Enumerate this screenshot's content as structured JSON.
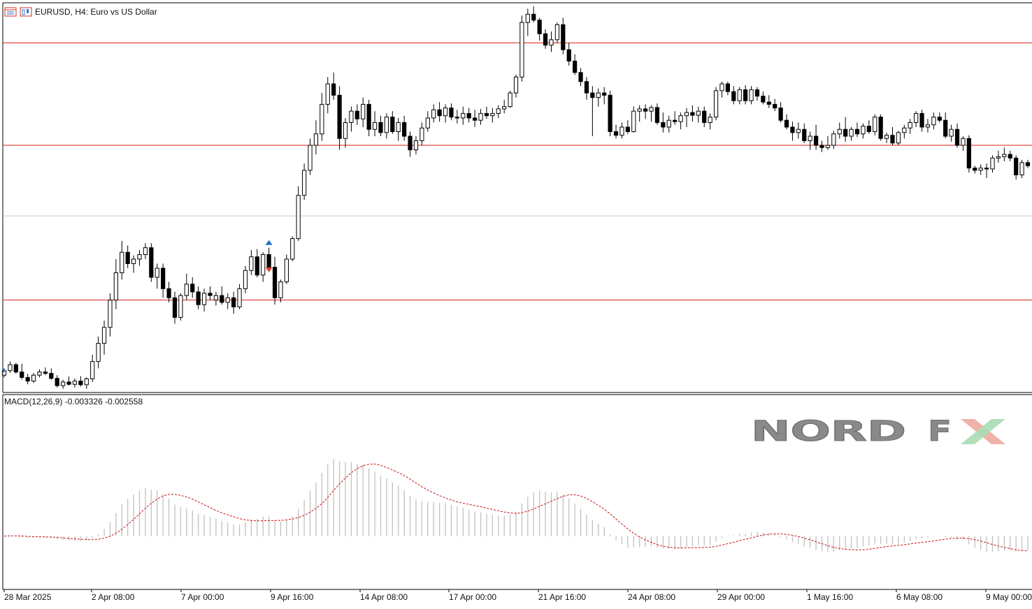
{
  "header": {
    "title": "EURUSD, H4:  Euro vs US Dollar",
    "icons": [
      "chart-window-icon",
      "chart-type-icon"
    ]
  },
  "indicator": {
    "label": "MACD(12,26,9) -0.003326 -0.002558"
  },
  "logo": {
    "text_main": "NORD",
    "text_f": "F",
    "text_x": "X",
    "colors": {
      "gray": "#8a8a8a",
      "red": "#f0b2a8",
      "green": "#a9dcb4"
    }
  },
  "colors": {
    "background": "#ffffff",
    "frame": "#000000",
    "level_line": "#e0201a",
    "mid_line": "#c8c8c8",
    "candle": "#000000",
    "macd_hist": "#c0c0c0",
    "signal": "#cc1111",
    "buy_arrow": "#1a73c6",
    "sell_arrow": "#e0402a"
  },
  "chart_data": [
    {
      "type": "candlestick",
      "symbol": "EURUSD",
      "timeframe": "H4",
      "x_labels": [
        "28 Mar 2025",
        "2 Apr 08:00",
        "7 Apr 00:00",
        "9 Apr 16:00",
        "14 Apr 08:00",
        "17 Apr 00:00",
        "21 Apr 16:00",
        "24 Apr 08:00",
        "29 Apr 00:00",
        "1 May 16:00",
        "6 May 08:00",
        "9 May 00:00"
      ],
      "ylim": [
        1.075,
        1.16
      ],
      "horizontal_lines": [
        1.1515,
        1.129,
        1.095
      ],
      "mid_line": 1.1135,
      "candles": [
        [
          1.0785,
          1.08,
          1.078,
          1.0795
        ],
        [
          1.0795,
          1.0815,
          1.079,
          1.0808
        ],
        [
          1.0808,
          1.0812,
          1.0788,
          1.0792
        ],
        [
          1.0792,
          1.081,
          1.0775,
          1.078
        ],
        [
          1.078,
          1.0788,
          1.0765,
          1.0772
        ],
        [
          1.0772,
          1.079,
          1.0768,
          1.0785
        ],
        [
          1.0785,
          1.0798,
          1.078,
          1.0792
        ],
        [
          1.0792,
          1.0802,
          1.0785,
          1.0789
        ],
        [
          1.0789,
          1.08,
          1.0775,
          1.0778
        ],
        [
          1.0778,
          1.0785,
          1.0758,
          1.0762
        ],
        [
          1.0762,
          1.0775,
          1.0755,
          1.077
        ],
        [
          1.077,
          1.0782,
          1.0762,
          1.0765
        ],
        [
          1.0765,
          1.0778,
          1.0758,
          1.0772
        ],
        [
          1.0772,
          1.0783,
          1.076,
          1.0764
        ],
        [
          1.0764,
          1.078,
          1.0755,
          1.0777
        ],
        [
          1.0777,
          1.083,
          1.077,
          1.0815
        ],
        [
          1.0815,
          1.087,
          1.08,
          1.0855
        ],
        [
          1.0855,
          1.0905,
          1.083,
          1.089
        ],
        [
          1.089,
          1.0965,
          1.087,
          1.095
        ],
        [
          1.095,
          1.104,
          1.093,
          1.101
        ],
        [
          1.101,
          1.108,
          1.0995,
          1.1055
        ],
        [
          1.1055,
          1.107,
          1.102,
          1.103
        ],
        [
          1.103,
          1.1048,
          1.101,
          1.104
        ],
        [
          1.104,
          1.106,
          1.1025,
          1.105
        ],
        [
          1.105,
          1.1075,
          1.104,
          1.1065
        ],
        [
          1.1065,
          1.1075,
          1.099,
          1.1
        ],
        [
          1.1,
          1.103,
          1.0975,
          1.102
        ],
        [
          1.102,
          1.103,
          1.0955,
          1.0975
        ],
        [
          1.0975,
          1.099,
          1.0945,
          1.0955
        ],
        [
          1.0955,
          1.0968,
          1.0898,
          1.0912
        ],
        [
          1.0912,
          1.0965,
          1.0905,
          1.096
        ],
        [
          1.096,
          1.1008,
          1.095,
          1.0985
        ],
        [
          1.0985,
          1.1,
          1.0955,
          1.0968
        ],
        [
          1.0968,
          1.098,
          1.093,
          1.094
        ],
        [
          1.094,
          1.0975,
          1.0925,
          1.0965
        ],
        [
          1.0965,
          1.098,
          1.095,
          1.096
        ],
        [
          1.095,
          1.0968,
          1.0938,
          1.096
        ],
        [
          1.096,
          1.098,
          1.094,
          1.0945
        ],
        [
          1.0945,
          1.0965,
          1.093,
          1.0955
        ],
        [
          1.0955,
          1.0968,
          1.092,
          1.0935
        ],
        [
          1.0935,
          1.0985,
          1.093,
          1.0975
        ],
        [
          1.0975,
          1.1025,
          1.0965,
          1.1015
        ],
        [
          1.1015,
          1.106,
          1.1005,
          1.1045
        ],
        [
          1.1045,
          1.1062,
          1.1,
          1.1005
        ],
        [
          1.1005,
          1.1055,
          1.099,
          1.105
        ],
        [
          1.105,
          1.1065,
          1.1015,
          1.1022
        ],
        [
          1.1022,
          1.1045,
          1.094,
          1.0955
        ],
        [
          1.0955,
          1.0995,
          1.0945,
          1.099
        ],
        [
          1.099,
          1.105,
          1.0985,
          1.104
        ],
        [
          1.104,
          1.109,
          1.1035,
          1.1085
        ],
        [
          1.1085,
          1.12,
          1.108,
          1.118
        ],
        [
          1.118,
          1.125,
          1.117,
          1.1235
        ],
        [
          1.1235,
          1.1305,
          1.1225,
          1.129
        ],
        [
          1.129,
          1.1345,
          1.127,
          1.1315
        ],
        [
          1.1315,
          1.1405,
          1.13,
          1.138
        ],
        [
          1.138,
          1.144,
          1.136,
          1.1425
        ],
        [
          1.1425,
          1.145,
          1.139,
          1.14
        ],
        [
          1.14,
          1.142,
          1.128,
          1.1305
        ],
        [
          1.1305,
          1.135,
          1.1285,
          1.134
        ],
        [
          1.134,
          1.1375,
          1.132,
          1.1365
        ],
        [
          1.1365,
          1.138,
          1.1335,
          1.1348
        ],
        [
          1.1348,
          1.1395,
          1.133,
          1.138
        ],
        [
          1.138,
          1.139,
          1.131,
          1.1325
        ],
        [
          1.1325,
          1.1365,
          1.131,
          1.134
        ],
        [
          1.134,
          1.1355,
          1.131,
          1.1318
        ],
        [
          1.1318,
          1.136,
          1.1305,
          1.1352
        ],
        [
          1.1352,
          1.1365,
          1.1315,
          1.132
        ],
        [
          1.132,
          1.135,
          1.13,
          1.134
        ],
        [
          1.134,
          1.1355,
          1.13,
          1.131
        ],
        [
          1.131,
          1.132,
          1.1265,
          1.128
        ],
        [
          1.128,
          1.131,
          1.127,
          1.13
        ],
        [
          1.13,
          1.134,
          1.129,
          1.1328
        ],
        [
          1.1328,
          1.1365,
          1.132,
          1.135
        ],
        [
          1.135,
          1.138,
          1.134,
          1.1368
        ],
        [
          1.1368,
          1.1385,
          1.1342,
          1.1355
        ],
        [
          1.1355,
          1.138,
          1.134,
          1.1372
        ],
        [
          1.1372,
          1.1382,
          1.1345,
          1.1352
        ],
        [
          1.1352,
          1.1368,
          1.1338,
          1.135
        ],
        [
          1.135,
          1.1375,
          1.1335,
          1.136
        ],
        [
          1.136,
          1.1372,
          1.134,
          1.135
        ],
        [
          1.135,
          1.1368,
          1.133,
          1.1345
        ],
        [
          1.1345,
          1.137,
          1.1335,
          1.136
        ],
        [
          1.136,
          1.1375,
          1.1348,
          1.1355
        ],
        [
          1.1355,
          1.1372,
          1.134,
          1.136
        ],
        [
          1.136,
          1.1378,
          1.135,
          1.137
        ],
        [
          1.137,
          1.139,
          1.136,
          1.1375
        ],
        [
          1.1375,
          1.141,
          1.1372,
          1.1405
        ],
        [
          1.1405,
          1.1445,
          1.1395,
          1.144
        ],
        [
          1.144,
          1.1575,
          1.143,
          1.156
        ],
        [
          1.156,
          1.159,
          1.153,
          1.1578
        ],
        [
          1.1578,
          1.1595,
          1.156,
          1.1565
        ],
        [
          1.1565,
          1.157,
          1.152,
          1.1535
        ],
        [
          1.1535,
          1.1545,
          1.1502,
          1.151
        ],
        [
          1.151,
          1.154,
          1.1495,
          1.1522
        ],
        [
          1.1522,
          1.156,
          1.1515,
          1.1555
        ],
        [
          1.1555,
          1.157,
          1.149,
          1.15
        ],
        [
          1.15,
          1.1515,
          1.1465,
          1.1475
        ],
        [
          1.1475,
          1.149,
          1.1445,
          1.145
        ],
        [
          1.145,
          1.146,
          1.142,
          1.143
        ],
        [
          1.143,
          1.144,
          1.139,
          1.1405
        ],
        [
          1.1405,
          1.142,
          1.131,
          1.1395
        ],
        [
          1.1395,
          1.1415,
          1.1375,
          1.1405
        ],
        [
          1.1405,
          1.1418,
          1.138,
          1.14
        ],
        [
          1.14,
          1.141,
          1.131,
          1.132
        ],
        [
          1.132,
          1.1335,
          1.1305,
          1.1312
        ],
        [
          1.1312,
          1.134,
          1.1305,
          1.133
        ],
        [
          1.133,
          1.1345,
          1.1315,
          1.132
        ],
        [
          1.132,
          1.1375,
          1.1318,
          1.1365
        ],
        [
          1.1365,
          1.1378,
          1.1342,
          1.137
        ],
        [
          1.137,
          1.138,
          1.1348,
          1.1365
        ],
        [
          1.1365,
          1.1378,
          1.1342,
          1.1373
        ],
        [
          1.1373,
          1.1382,
          1.1335,
          1.134
        ],
        [
          1.134,
          1.1362,
          1.1318,
          1.133
        ],
        [
          1.133,
          1.1355,
          1.1318,
          1.1345
        ],
        [
          1.1345,
          1.1365,
          1.1335,
          1.1342
        ],
        [
          1.1342,
          1.1362,
          1.1325,
          1.1355
        ],
        [
          1.1355,
          1.1372,
          1.133,
          1.1362
        ],
        [
          1.1362,
          1.1378,
          1.1342,
          1.1356
        ],
        [
          1.1356,
          1.1375,
          1.134,
          1.1365
        ],
        [
          1.1365,
          1.1375,
          1.133,
          1.134
        ],
        [
          1.134,
          1.136,
          1.1325,
          1.1352
        ],
        [
          1.1352,
          1.1418,
          1.1345,
          1.141
        ],
        [
          1.141,
          1.143,
          1.1395,
          1.1425
        ],
        [
          1.1425,
          1.143,
          1.14,
          1.1408
        ],
        [
          1.1408,
          1.142,
          1.138,
          1.1388
        ],
        [
          1.1388,
          1.1418,
          1.138,
          1.1412
        ],
        [
          1.1412,
          1.1422,
          1.138,
          1.1388
        ],
        [
          1.1388,
          1.142,
          1.138,
          1.1412
        ],
        [
          1.1412,
          1.1418,
          1.1388,
          1.1398
        ],
        [
          1.1398,
          1.1408,
          1.138,
          1.1385
        ],
        [
          1.1385,
          1.14,
          1.1372,
          1.138
        ],
        [
          1.138,
          1.1392,
          1.1365,
          1.1372
        ],
        [
          1.1372,
          1.1385,
          1.134,
          1.1345
        ],
        [
          1.1345,
          1.1358,
          1.1325,
          1.133
        ],
        [
          1.133,
          1.1342,
          1.13,
          1.1318
        ],
        [
          1.1318,
          1.134,
          1.1305,
          1.1325
        ],
        [
          1.1325,
          1.1338,
          1.1295,
          1.13
        ],
        [
          1.13,
          1.132,
          1.128,
          1.131
        ],
        [
          1.131,
          1.1335,
          1.128,
          1.129
        ],
        [
          1.129,
          1.13,
          1.1275,
          1.1285
        ],
        [
          1.1285,
          1.131,
          1.128,
          1.129
        ],
        [
          1.129,
          1.1322,
          1.1282,
          1.1315
        ],
        [
          1.1315,
          1.134,
          1.1305,
          1.1325
        ],
        [
          1.1325,
          1.1352,
          1.1298,
          1.131
        ],
        [
          1.131,
          1.133,
          1.13,
          1.1325
        ],
        [
          1.1325,
          1.134,
          1.1308,
          1.1315
        ],
        [
          1.1315,
          1.1338,
          1.1305,
          1.1332
        ],
        [
          1.1332,
          1.1345,
          1.1315,
          1.132
        ],
        [
          1.132,
          1.1358,
          1.1312,
          1.1352
        ],
        [
          1.1352,
          1.1358,
          1.13,
          1.1305
        ],
        [
          1.1305,
          1.1318,
          1.1295,
          1.1312
        ],
        [
          1.1312,
          1.133,
          1.129,
          1.1295
        ],
        [
          1.1295,
          1.1322,
          1.129,
          1.1318
        ],
        [
          1.1318,
          1.1335,
          1.1305,
          1.1328
        ],
        [
          1.1328,
          1.1348,
          1.1315,
          1.134
        ],
        [
          1.134,
          1.1365,
          1.133,
          1.136
        ],
        [
          1.136,
          1.1368,
          1.132,
          1.133
        ],
        [
          1.133,
          1.1348,
          1.1318,
          1.1335
        ],
        [
          1.1335,
          1.1362,
          1.1325,
          1.1352
        ],
        [
          1.1352,
          1.1362,
          1.134,
          1.1345
        ],
        [
          1.1345,
          1.1362,
          1.1305,
          1.131
        ],
        [
          1.131,
          1.1335,
          1.1298,
          1.1325
        ],
        [
          1.1325,
          1.1338,
          1.1285,
          1.129
        ],
        [
          1.129,
          1.131,
          1.1278,
          1.1305
        ],
        [
          1.1305,
          1.1312,
          1.123,
          1.124
        ],
        [
          1.124,
          1.1245,
          1.1228,
          1.1235
        ],
        [
          1.1235,
          1.1248,
          1.1225,
          1.124
        ],
        [
          1.124,
          1.125,
          1.1218,
          1.1238
        ],
        [
          1.1238,
          1.1268,
          1.123,
          1.1262
        ],
        [
          1.1262,
          1.1278,
          1.1252,
          1.1265
        ],
        [
          1.1265,
          1.1285,
          1.1255,
          1.127
        ],
        [
          1.127,
          1.1278,
          1.1255,
          1.1262
        ],
        [
          1.1262,
          1.1268,
          1.1215,
          1.1225
        ],
        [
          1.1225,
          1.1258,
          1.1218,
          1.1252
        ],
        [
          1.1252,
          1.1258,
          1.124,
          1.1245
        ]
      ],
      "signals": [
        {
          "type": "buy",
          "candle": 45
        },
        {
          "type": "sell",
          "candle": 45
        }
      ]
    },
    {
      "type": "bar+line",
      "name": "MACD(12,26,9)",
      "ylim": [
        -0.0072,
        0.0184
      ],
      "histogram": [],
      "signal": []
    }
  ]
}
